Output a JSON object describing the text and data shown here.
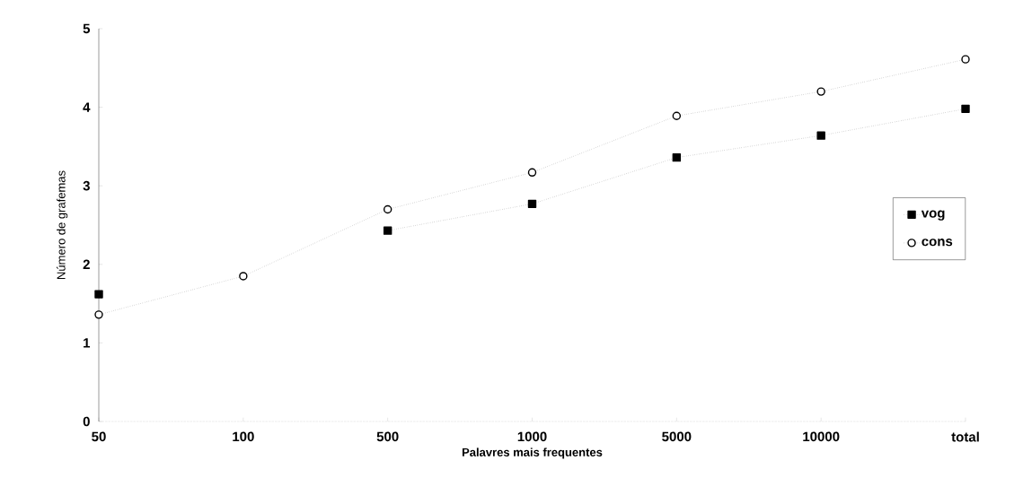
{
  "chart_data": {
    "type": "line",
    "xlabel": "Palavres mais frequentes",
    "ylabel": "Número de grafemas",
    "categories": [
      "50",
      "100",
      "500",
      "1000",
      "5000",
      "10000",
      "total"
    ],
    "series": [
      {
        "name": "vog",
        "color": "#000000",
        "marker": "square",
        "values": [
          1.62,
          null,
          2.43,
          2.77,
          3.36,
          3.64,
          3.98
        ]
      },
      {
        "name": "cons",
        "color": "#000000",
        "marker": "circle",
        "values": [
          1.36,
          1.85,
          2.7,
          3.17,
          3.89,
          4.2,
          4.61
        ]
      }
    ],
    "ylim": [
      0,
      5
    ],
    "yticks": [
      0,
      1,
      2,
      3,
      4,
      5
    ],
    "line_style": "dotted",
    "legend": "right",
    "grid": false
  }
}
